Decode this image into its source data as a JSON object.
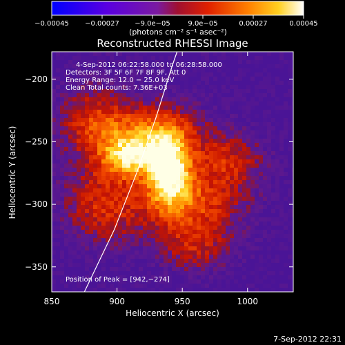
{
  "chart_data": {
    "type": "heatmap",
    "title": "Reconstructed RHESSI Image",
    "xlabel": "Heliocentric X (arcsec)",
    "ylabel": "Heliocentric Y (arcsec)",
    "xlim": [
      850,
      1035
    ],
    "ylim": [
      -370,
      -178
    ],
    "x_ticks": [
      850,
      900,
      950,
      1000
    ],
    "x_tick_labels": [
      "850",
      "900",
      "950",
      "1000"
    ],
    "y_ticks": [
      -200,
      -250,
      -300,
      -350
    ],
    "y_tick_labels": [
      "−200",
      "−250",
      "−300",
      "−350"
    ],
    "colorbar": {
      "range": [
        -0.00045,
        0.00045
      ],
      "ticks": [
        -0.00045,
        -0.00027,
        -9e-05,
        9e-05,
        0.00027,
        0.00045
      ],
      "tick_labels": [
        "−0.00045",
        "−0.00027",
        "−9.0e−05",
        "9.0e−05",
        "0.00027",
        "0.00045"
      ],
      "unit_label": "(photons cm⁻² s⁻¹ asec⁻²)"
    },
    "info_lines": [
      "4-Sep-2012 06:22:58.000 to 06:28:58.000",
      "Detectors: 3F 5F 6F 7F 8F 9F, Att 0",
      "Energy Range: 12.0 − 25.0 keV",
      "Clean     Total counts: 7.36E+03"
    ],
    "peak_label": "Position of Peak = [942,−274]",
    "peak": [
      942,
      -274
    ],
    "limb_curve": [
      [
        875,
        -370
      ],
      [
        898,
        -320
      ],
      [
        915,
        -275
      ],
      [
        930,
        -230
      ],
      [
        942,
        -190
      ],
      [
        946,
        -178
      ]
    ],
    "sources": [
      {
        "x": 940,
        "y": -272,
        "sx": 12,
        "sy": 20,
        "amp": 1.0
      },
      {
        "x": 910,
        "y": -262,
        "sx": 15,
        "sy": 12,
        "amp": 0.75
      },
      {
        "x": 925,
        "y": -240,
        "sx": 28,
        "sy": 16,
        "amp": 0.55
      },
      {
        "x": 958,
        "y": -300,
        "sx": 28,
        "sy": 18,
        "amp": 0.5
      },
      {
        "x": 890,
        "y": -300,
        "sx": 22,
        "sy": 22,
        "amp": 0.45
      },
      {
        "x": 985,
        "y": -265,
        "sx": 20,
        "sy": 16,
        "amp": 0.4
      },
      {
        "x": 880,
        "y": -235,
        "sx": 18,
        "sy": 22,
        "amp": 0.4
      },
      {
        "x": 960,
        "y": -335,
        "sx": 20,
        "sy": 14,
        "amp": 0.35
      }
    ],
    "footer_date": "7-Sep-2012 22:31"
  }
}
